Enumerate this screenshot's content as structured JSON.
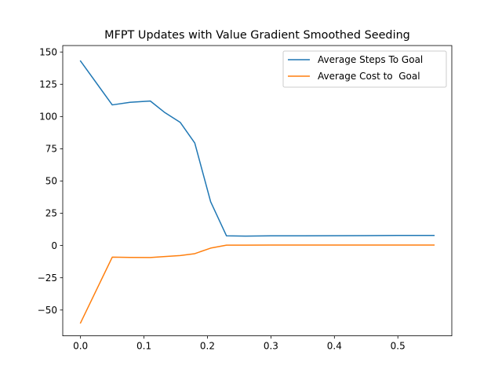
{
  "chart_data": {
    "type": "line",
    "title": "MFPT Updates with Value Gradient Smoothed Seeding",
    "xlabel": "",
    "ylabel": "",
    "xlim": [
      -0.028,
      0.585
    ],
    "ylim": [
      -70,
      155
    ],
    "xticks": [
      0.0,
      0.1,
      0.2,
      0.3,
      0.4,
      0.5
    ],
    "xtick_labels": [
      "0.0",
      "0.1",
      "0.2",
      "0.3",
      "0.4",
      "0.5"
    ],
    "yticks": [
      -50,
      -25,
      0,
      25,
      50,
      75,
      100,
      125,
      150
    ],
    "ytick_labels": [
      "−50",
      "−25",
      "0",
      "25",
      "50",
      "75",
      "100",
      "125",
      "150"
    ],
    "grid": false,
    "legend_position": "top-right",
    "series": [
      {
        "name": "Average Steps To Goal",
        "color": "#1f77b4",
        "x": [
          0.0,
          0.05,
          0.078,
          0.11,
          0.133,
          0.157,
          0.18,
          0.205,
          0.23,
          0.26,
          0.3,
          0.35,
          0.4,
          0.45,
          0.5,
          0.557
        ],
        "y": [
          143,
          109,
          111,
          112,
          103,
          95.5,
          79.5,
          34,
          7.5,
          7.3,
          7.5,
          7.5,
          7.6,
          7.7,
          7.8,
          7.8
        ]
      },
      {
        "name": "Average Cost to  Goal",
        "color": "#ff7f0e",
        "x": [
          0.0,
          0.05,
          0.078,
          0.11,
          0.133,
          0.157,
          0.18,
          0.205,
          0.23,
          0.26,
          0.3,
          0.35,
          0.4,
          0.45,
          0.5,
          0.557
        ],
        "y": [
          -60,
          -9,
          -9.2,
          -9.3,
          -8.5,
          -7.8,
          -6.3,
          -2,
          0.3,
          0.3,
          0.4,
          0.4,
          0.4,
          0.4,
          0.4,
          0.4
        ]
      }
    ]
  }
}
